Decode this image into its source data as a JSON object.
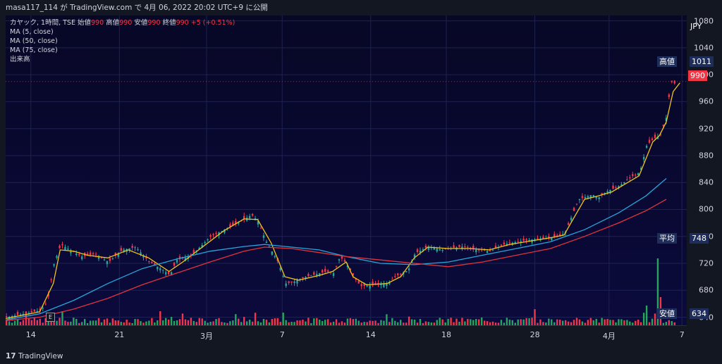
{
  "header": {
    "text": "masa117_114 が TradingView.com で 4月 06, 2022 20:02 UTC+9 に公開"
  },
  "footer": {
    "logo_text": "TradingView"
  },
  "legend": {
    "symbol_line": "カヤック, 1時間, TSE",
    "ohlc": [
      {
        "label": "始値",
        "value": "990"
      },
      {
        "label": "高値",
        "value": "990"
      },
      {
        "label": "安値",
        "value": "990"
      },
      {
        "label": "終値",
        "value": "990"
      }
    ],
    "change": "+5 (+0.51%)",
    "indicators": [
      "MA (5, close)",
      "MA (50, close)",
      "MA (75, close)",
      "出来高"
    ]
  },
  "axis_tags": {
    "currency": "JPY",
    "high_label": "高値",
    "high_value": "1011",
    "current_value": "990",
    "avg_label": "平均",
    "avg_value": "748",
    "low_label": "安値",
    "low_value": "634"
  },
  "colors": {
    "up": "#26a69a",
    "down": "#f23645",
    "ma5": "#f0c419",
    "ma50": "#26a6d9",
    "ma75": "#e0343c",
    "volume_up": "#26a65b",
    "volume_down": "#f23645"
  },
  "chart_data": {
    "type": "candlestick",
    "y_ticks": [
      640,
      680,
      720,
      760,
      800,
      840,
      880,
      920,
      960,
      1000,
      1040,
      1080
    ],
    "ylim": [
      628,
      1088
    ],
    "x_ticks": [
      {
        "label": "14",
        "pos": 0.037
      },
      {
        "label": "21",
        "pos": 0.167
      },
      {
        "label": "3月",
        "pos": 0.295
      },
      {
        "label": "7",
        "pos": 0.406
      },
      {
        "label": "14",
        "pos": 0.536
      },
      {
        "label": "18",
        "pos": 0.647
      },
      {
        "label": "28",
        "pos": 0.777
      },
      {
        "label": "4月",
        "pos": 0.886
      },
      {
        "label": "7",
        "pos": 0.993
      }
    ],
    "close_path": [
      [
        0.0,
        640
      ],
      [
        0.03,
        646
      ],
      [
        0.05,
        650
      ],
      [
        0.06,
        662
      ],
      [
        0.07,
        720
      ],
      [
        0.08,
        748
      ],
      [
        0.09,
        742
      ],
      [
        0.11,
        730
      ],
      [
        0.13,
        734
      ],
      [
        0.15,
        722
      ],
      [
        0.17,
        740
      ],
      [
        0.19,
        744
      ],
      [
        0.21,
        722
      ],
      [
        0.23,
        710
      ],
      [
        0.24,
        702
      ],
      [
        0.25,
        725
      ],
      [
        0.27,
        730
      ],
      [
        0.3,
        760
      ],
      [
        0.32,
        770
      ],
      [
        0.34,
        780
      ],
      [
        0.36,
        792
      ],
      [
        0.37,
        782
      ],
      [
        0.38,
        755
      ],
      [
        0.4,
        720
      ],
      [
        0.41,
        690
      ],
      [
        0.42,
        692
      ],
      [
        0.44,
        700
      ],
      [
        0.47,
        708
      ],
      [
        0.48,
        705
      ],
      [
        0.49,
        730
      ],
      [
        0.5,
        718
      ],
      [
        0.51,
        700
      ],
      [
        0.52,
        686
      ],
      [
        0.54,
        688
      ],
      [
        0.56,
        690
      ],
      [
        0.57,
        700
      ],
      [
        0.59,
        710
      ],
      [
        0.6,
        735
      ],
      [
        0.62,
        745
      ],
      [
        0.64,
        740
      ],
      [
        0.65,
        742
      ],
      [
        0.67,
        745
      ],
      [
        0.69,
        740
      ],
      [
        0.71,
        738
      ],
      [
        0.73,
        748
      ],
      [
        0.75,
        752
      ],
      [
        0.77,
        755
      ],
      [
        0.79,
        757
      ],
      [
        0.81,
        760
      ],
      [
        0.82,
        765
      ],
      [
        0.83,
        790
      ],
      [
        0.84,
        815
      ],
      [
        0.86,
        822
      ],
      [
        0.87,
        818
      ],
      [
        0.88,
        826
      ],
      [
        0.9,
        835
      ],
      [
        0.92,
        850
      ],
      [
        0.93,
        855
      ],
      [
        0.94,
        895
      ],
      [
        0.95,
        905
      ],
      [
        0.96,
        910
      ],
      [
        0.97,
        940
      ],
      [
        0.975,
        990
      ],
      [
        0.985,
        985
      ],
      [
        0.99,
        990
      ]
    ],
    "series": [
      {
        "name": "MA (5, close)",
        "color": "#f0c419",
        "points": [
          [
            0.0,
            638
          ],
          [
            0.05,
            648
          ],
          [
            0.07,
            690
          ],
          [
            0.08,
            740
          ],
          [
            0.1,
            738
          ],
          [
            0.12,
            732
          ],
          [
            0.15,
            728
          ],
          [
            0.18,
            740
          ],
          [
            0.21,
            728
          ],
          [
            0.24,
            708
          ],
          [
            0.26,
            722
          ],
          [
            0.29,
            745
          ],
          [
            0.32,
            768
          ],
          [
            0.35,
            786
          ],
          [
            0.37,
            785
          ],
          [
            0.39,
            750
          ],
          [
            0.41,
            700
          ],
          [
            0.43,
            695
          ],
          [
            0.46,
            702
          ],
          [
            0.48,
            708
          ],
          [
            0.5,
            722
          ],
          [
            0.51,
            700
          ],
          [
            0.53,
            688
          ],
          [
            0.56,
            690
          ],
          [
            0.58,
            700
          ],
          [
            0.6,
            728
          ],
          [
            0.62,
            744
          ],
          [
            0.65,
            742
          ],
          [
            0.68,
            742
          ],
          [
            0.71,
            740
          ],
          [
            0.74,
            748
          ],
          [
            0.77,
            753
          ],
          [
            0.8,
            758
          ],
          [
            0.82,
            762
          ],
          [
            0.83,
            780
          ],
          [
            0.85,
            815
          ],
          [
            0.87,
            820
          ],
          [
            0.89,
            826
          ],
          [
            0.91,
            838
          ],
          [
            0.93,
            850
          ],
          [
            0.95,
            900
          ],
          [
            0.96,
            910
          ],
          [
            0.97,
            930
          ],
          [
            0.98,
            975
          ],
          [
            0.99,
            988
          ]
        ]
      },
      {
        "name": "MA (50, close)",
        "color": "#26a6d9",
        "points": [
          [
            0.0,
            636
          ],
          [
            0.05,
            645
          ],
          [
            0.1,
            665
          ],
          [
            0.15,
            690
          ],
          [
            0.2,
            712
          ],
          [
            0.25,
            726
          ],
          [
            0.3,
            738
          ],
          [
            0.35,
            745
          ],
          [
            0.38,
            748
          ],
          [
            0.42,
            744
          ],
          [
            0.46,
            740
          ],
          [
            0.5,
            730
          ],
          [
            0.55,
            720
          ],
          [
            0.6,
            718
          ],
          [
            0.65,
            722
          ],
          [
            0.7,
            732
          ],
          [
            0.75,
            742
          ],
          [
            0.8,
            752
          ],
          [
            0.85,
            770
          ],
          [
            0.9,
            795
          ],
          [
            0.94,
            820
          ],
          [
            0.97,
            846
          ]
        ]
      },
      {
        "name": "MA (75, close)",
        "color": "#e0343c",
        "points": [
          [
            0.0,
            635
          ],
          [
            0.05,
            640
          ],
          [
            0.1,
            652
          ],
          [
            0.15,
            668
          ],
          [
            0.2,
            688
          ],
          [
            0.25,
            705
          ],
          [
            0.3,
            722
          ],
          [
            0.35,
            738
          ],
          [
            0.38,
            744
          ],
          [
            0.42,
            742
          ],
          [
            0.46,
            736
          ],
          [
            0.5,
            730
          ],
          [
            0.55,
            725
          ],
          [
            0.6,
            720
          ],
          [
            0.65,
            715
          ],
          [
            0.7,
            722
          ],
          [
            0.75,
            732
          ],
          [
            0.8,
            742
          ],
          [
            0.85,
            760
          ],
          [
            0.9,
            780
          ],
          [
            0.94,
            798
          ],
          [
            0.97,
            815
          ]
        ]
      }
    ]
  }
}
